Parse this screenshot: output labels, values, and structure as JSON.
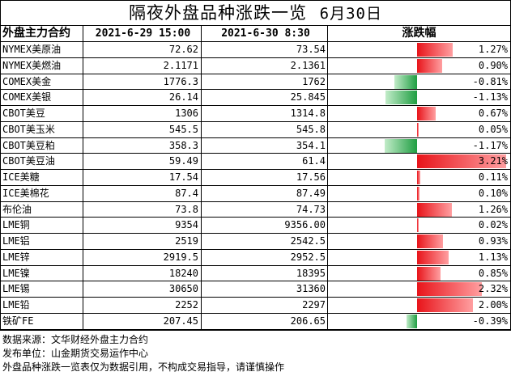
{
  "title": "隔夜外盘品种涨跌一览",
  "title_date": "6月30日",
  "headers": {
    "name": "外盘主力合约",
    "col1": "2021-6-29 15:00",
    "col2": "2021-6-30 8:30",
    "change": "涨跌幅"
  },
  "colors": {
    "positive": "#e8141a",
    "negative": "#1f9e42"
  },
  "chart_data": {
    "type": "table",
    "columns": [
      "外盘主力合约",
      "2021-6-29 15:00",
      "2021-6-30 8:30",
      "涨跌幅"
    ],
    "rows": [
      {
        "name": "NYMEX美原油",
        "prev": "72.62",
        "curr": "73.54",
        "change_label": "1.27%",
        "change": 1.27
      },
      {
        "name": "NYMEX美燃油",
        "prev": "2.1171",
        "curr": "2.1361",
        "change_label": "0.90%",
        "change": 0.9
      },
      {
        "name": "COMEX美金",
        "prev": "1776.3",
        "curr": "1762",
        "change_label": "-0.81%",
        "change": -0.81
      },
      {
        "name": "COMEX美银",
        "prev": "26.14",
        "curr": "25.845",
        "change_label": "-1.13%",
        "change": -1.13
      },
      {
        "name": "CBOT美豆",
        "prev": "1306",
        "curr": "1314.8",
        "change_label": "0.67%",
        "change": 0.67
      },
      {
        "name": "CBOT美玉米",
        "prev": "545.5",
        "curr": "545.8",
        "change_label": "0.05%",
        "change": 0.05
      },
      {
        "name": "CBOT美豆粕",
        "prev": "358.3",
        "curr": "354.1",
        "change_label": "-1.17%",
        "change": -1.17
      },
      {
        "name": "CBOT美豆油",
        "prev": "59.49",
        "curr": "61.4",
        "change_label": "3.21%",
        "change": 3.21
      },
      {
        "name": "ICE美糖",
        "prev": "17.54",
        "curr": "17.56",
        "change_label": "0.11%",
        "change": 0.11
      },
      {
        "name": "ICE美棉花",
        "prev": "87.4",
        "curr": "87.49",
        "change_label": "0.10%",
        "change": 0.1
      },
      {
        "name": "布伦油",
        "prev": "73.8",
        "curr": "74.73",
        "change_label": "1.26%",
        "change": 1.26
      },
      {
        "name": "LME铜",
        "prev": "9354",
        "curr": "9356.00",
        "change_label": "0.02%",
        "change": 0.02
      },
      {
        "name": "LME铝",
        "prev": "2519",
        "curr": "2542.5",
        "change_label": "0.93%",
        "change": 0.93
      },
      {
        "name": "LME锌",
        "prev": "2919.5",
        "curr": "2952.5",
        "change_label": "1.13%",
        "change": 1.13
      },
      {
        "name": "LME镍",
        "prev": "18240",
        "curr": "18395",
        "change_label": "0.85%",
        "change": 0.85
      },
      {
        "name": "LME锡",
        "prev": "30650",
        "curr": "31360",
        "change_label": "2.32%",
        "change": 2.32
      },
      {
        "name": "LME铅",
        "prev": "2252",
        "curr": "2297",
        "change_label": "2.00%",
        "change": 2.0
      },
      {
        "name": "铁矿FE",
        "prev": "207.45",
        "curr": "206.65",
        "change_label": "-0.39%",
        "change": -0.39
      }
    ]
  },
  "footer": [
    "数据来源：文华财经外盘主力合约",
    "发布单位：山金期货交易运作中心",
    "外盘品种涨跌一览表仅为数据引用，不构成交易指导，请谨慎操作"
  ]
}
